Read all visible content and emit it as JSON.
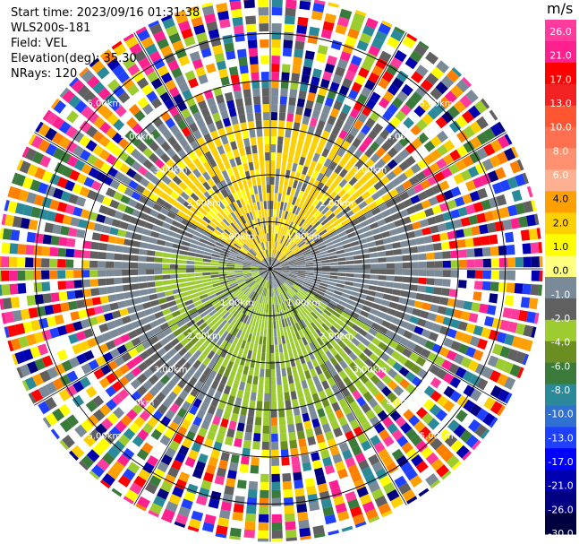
{
  "header": {
    "start_time": "Start time: 2023/09/16 01:31:38",
    "instrument": "WLS200s-181",
    "field": "Field: VEL",
    "elevation": "Elevation(deg): 35.30",
    "nrays": "NRays: 120"
  },
  "colorbar": {
    "unit": "m/s",
    "ticks": [
      "26.0",
      "21.0",
      "17.0",
      "13.0",
      "10.0",
      "8.0",
      "6.0",
      "4.0",
      "2.0",
      "1.0",
      "0.0",
      "-1.0",
      "-2.0",
      "-4.0",
      "-6.0",
      "-8.0",
      "-10.0",
      "-13.0",
      "-17.0",
      "-21.0",
      "-26.0",
      "-30.0"
    ],
    "colors": [
      "#ff3b9e",
      "#ff2090",
      "#ff0000",
      "#f22222",
      "#ff5530",
      "#ff7050",
      "#ff9070",
      "#ffb090",
      "#ffa000",
      "#ffd000",
      "#ffff00",
      "#ffff80",
      "#7a8a99",
      "#606060",
      "#9ccc30",
      "#6b8e23",
      "#3a7a3a",
      "#2a8a9a",
      "#3070d0",
      "#2040ff",
      "#0000ff",
      "#0000b0",
      "#000080",
      "#000040"
    ]
  },
  "chart_data": {
    "type": "ppi",
    "field": "VEL",
    "units": "m/s",
    "nrays": 120,
    "range_rings_km": [
      1,
      2,
      3,
      4,
      5
    ],
    "ring_labels": [
      "1.00km",
      "2.00km",
      "3.00km",
      "4.00km",
      "5.00km"
    ],
    "max_range_km": 5.8,
    "vmin": -30,
    "vmax": 30,
    "regions": [
      {
        "description": "near-range positive velocities",
        "value_ms": 1.5,
        "azimuth_deg": [
          300,
          60
        ],
        "range_km": [
          0.3,
          3.2
        ]
      },
      {
        "description": "near-range negative velocities",
        "value_ms": -1.5,
        "azimuth_deg": [
          180,
          280
        ],
        "range_km": [
          0.3,
          2.5
        ]
      },
      {
        "description": "near-range negative velocities",
        "value_ms": -1.5,
        "azimuth_deg": [
          120,
          200
        ],
        "range_km": [
          0.5,
          3.8
        ]
      },
      {
        "description": "background near-zero",
        "value_ms": 0.0,
        "range_km": [
          0,
          3.8
        ]
      },
      {
        "description": "far-range noise",
        "value_ms": "random",
        "range_km": [
          3.8,
          5.8
        ]
      }
    ]
  }
}
